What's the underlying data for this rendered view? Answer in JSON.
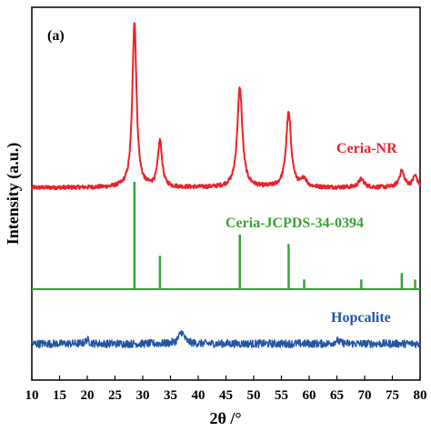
{
  "chart_data": {
    "type": "line",
    "panel_label": "(a)",
    "xlabel": "2θ /°",
    "ylabel": "Intensity (a.u.)",
    "xlim": [
      10,
      80
    ],
    "x_ticks": [
      10,
      15,
      20,
      25,
      30,
      35,
      40,
      45,
      50,
      55,
      60,
      65,
      70,
      75,
      80
    ],
    "grid": false,
    "legend": "none",
    "series": [
      {
        "name": "Ceria-NR",
        "color": "#e8232b",
        "style": "line",
        "baseline": 0.02,
        "noise": 0.012,
        "peaks": [
          {
            "x": 28.5,
            "height": 1.0,
            "width": 0.45
          },
          {
            "x": 33.1,
            "height": 0.28,
            "width": 0.45
          },
          {
            "x": 47.5,
            "height": 0.6,
            "width": 0.55
          },
          {
            "x": 56.3,
            "height": 0.45,
            "width": 0.55
          },
          {
            "x": 59.1,
            "height": 0.05,
            "width": 0.5
          },
          {
            "x": 69.4,
            "height": 0.05,
            "width": 0.6
          },
          {
            "x": 76.7,
            "height": 0.1,
            "width": 0.55
          },
          {
            "x": 79.1,
            "height": 0.07,
            "width": 0.5
          }
        ]
      },
      {
        "name": "Ceria-JCPDS-34-0394",
        "color": "#3aa33a",
        "style": "stick",
        "sticks": [
          {
            "x": 28.5,
            "intensity": 1.0
          },
          {
            "x": 33.1,
            "intensity": 0.31
          },
          {
            "x": 47.5,
            "intensity": 0.51
          },
          {
            "x": 56.3,
            "intensity": 0.42
          },
          {
            "x": 59.1,
            "intensity": 0.09
          },
          {
            "x": 69.4,
            "intensity": 0.09
          },
          {
            "x": 76.7,
            "intensity": 0.15
          },
          {
            "x": 79.1,
            "intensity": 0.09
          }
        ]
      },
      {
        "name": "Hopcalite",
        "color": "#2255a4",
        "style": "line",
        "baseline": 0.0,
        "noise": 0.12,
        "peaks": [
          {
            "x": 37.0,
            "height": 0.35,
            "width": 0.6
          },
          {
            "x": 20.0,
            "height": 0.12,
            "width": 0.4
          },
          {
            "x": 65.0,
            "height": 0.1,
            "width": 0.5
          }
        ]
      }
    ]
  }
}
